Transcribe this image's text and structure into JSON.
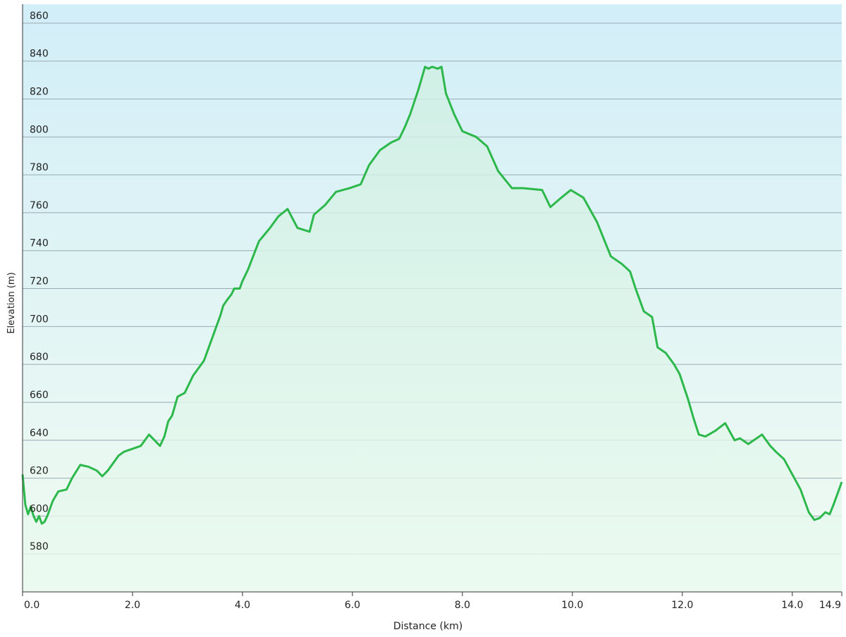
{
  "chart_data": {
    "type": "area",
    "title": "",
    "xlabel": "Distance  (km)",
    "ylabel": "Elevation (m)",
    "xlim": [
      0,
      14.9
    ],
    "ylim": [
      560,
      870
    ],
    "grid": true,
    "x_ticks": [
      {
        "value": 0.0,
        "label": "0.0"
      },
      {
        "value": 2.0,
        "label": "2.0"
      },
      {
        "value": 4.0,
        "label": "4.0"
      },
      {
        "value": 6.0,
        "label": "6.0"
      },
      {
        "value": 8.0,
        "label": "8.0"
      },
      {
        "value": 10.0,
        "label": "10.0"
      },
      {
        "value": 12.0,
        "label": "12.0"
      },
      {
        "value": 14.0,
        "label": "14.0"
      },
      {
        "value": 14.9,
        "label": "14.9"
      }
    ],
    "y_ticks": [
      580,
      600,
      620,
      640,
      660,
      680,
      700,
      720,
      740,
      760,
      780,
      800,
      820,
      840,
      860
    ],
    "colors": {
      "line": "#2db84b",
      "fill_top": "#cfefe2",
      "fill_bottom": "#eafaf0",
      "bg_top": "#d2eef8",
      "bg_bottom": "#f1fbf1",
      "grid": "#9aaab3",
      "axis": "#333333"
    },
    "series": [
      {
        "x": [
          0.0,
          0.05,
          0.1,
          0.15,
          0.2,
          0.25,
          0.3,
          0.35,
          0.4,
          0.45,
          0.55,
          0.65,
          0.8,
          0.9,
          1.05,
          1.2,
          1.35,
          1.45,
          1.55,
          1.6,
          1.75,
          1.85,
          2.15,
          2.3,
          2.5,
          2.58,
          2.65,
          2.72,
          2.82,
          2.95,
          3.1,
          3.2,
          3.3,
          3.4,
          3.5,
          3.6,
          3.65,
          3.72,
          3.8,
          3.85,
          3.95,
          4.0,
          4.1,
          4.3,
          4.5,
          4.65,
          4.82,
          5.0,
          5.22,
          5.3,
          5.5,
          5.7,
          5.95,
          6.15,
          6.3,
          6.5,
          6.7,
          6.85,
          6.95,
          7.05,
          7.2,
          7.32,
          7.38,
          7.45,
          7.55,
          7.62,
          7.7,
          7.85,
          8.0,
          8.25,
          8.45,
          8.65,
          8.9,
          9.1,
          9.45,
          9.6,
          9.8,
          9.97,
          10.2,
          10.45,
          10.7,
          10.9,
          11.05,
          11.15,
          11.3,
          11.45,
          11.55,
          11.7,
          11.85,
          11.95,
          12.1,
          12.2,
          12.3,
          12.42,
          12.6,
          12.78,
          12.95,
          13.05,
          13.2,
          13.3,
          13.45,
          13.6,
          13.7,
          13.85,
          14.0,
          14.15,
          14.3,
          14.4,
          14.5,
          14.6,
          14.68,
          14.75,
          14.9
        ],
        "values": [
          622,
          606,
          601,
          605,
          600,
          597,
          600,
          596,
          597,
          600,
          608,
          613,
          614,
          620,
          627,
          626,
          624,
          621,
          624,
          626,
          632,
          634,
          637,
          643,
          637,
          642,
          650,
          653,
          663,
          665,
          674,
          678,
          682,
          690,
          698,
          706,
          711,
          714,
          717,
          720,
          720,
          724,
          730,
          745,
          752,
          758,
          762,
          752,
          750,
          759,
          764,
          771,
          773,
          775,
          785,
          793,
          797,
          799,
          805,
          812,
          825,
          837,
          836,
          837,
          836,
          837,
          823,
          812,
          803,
          800,
          795,
          782,
          773,
          773,
          772,
          763,
          768,
          772,
          768,
          755,
          737,
          733,
          729,
          720,
          708,
          705,
          689,
          686,
          680,
          675,
          662,
          652,
          643,
          642,
          645,
          649,
          640,
          641,
          638,
          640,
          643,
          637,
          634,
          630,
          622,
          614,
          602,
          598,
          599,
          602,
          601,
          606,
          618
        ]
      }
    ]
  }
}
